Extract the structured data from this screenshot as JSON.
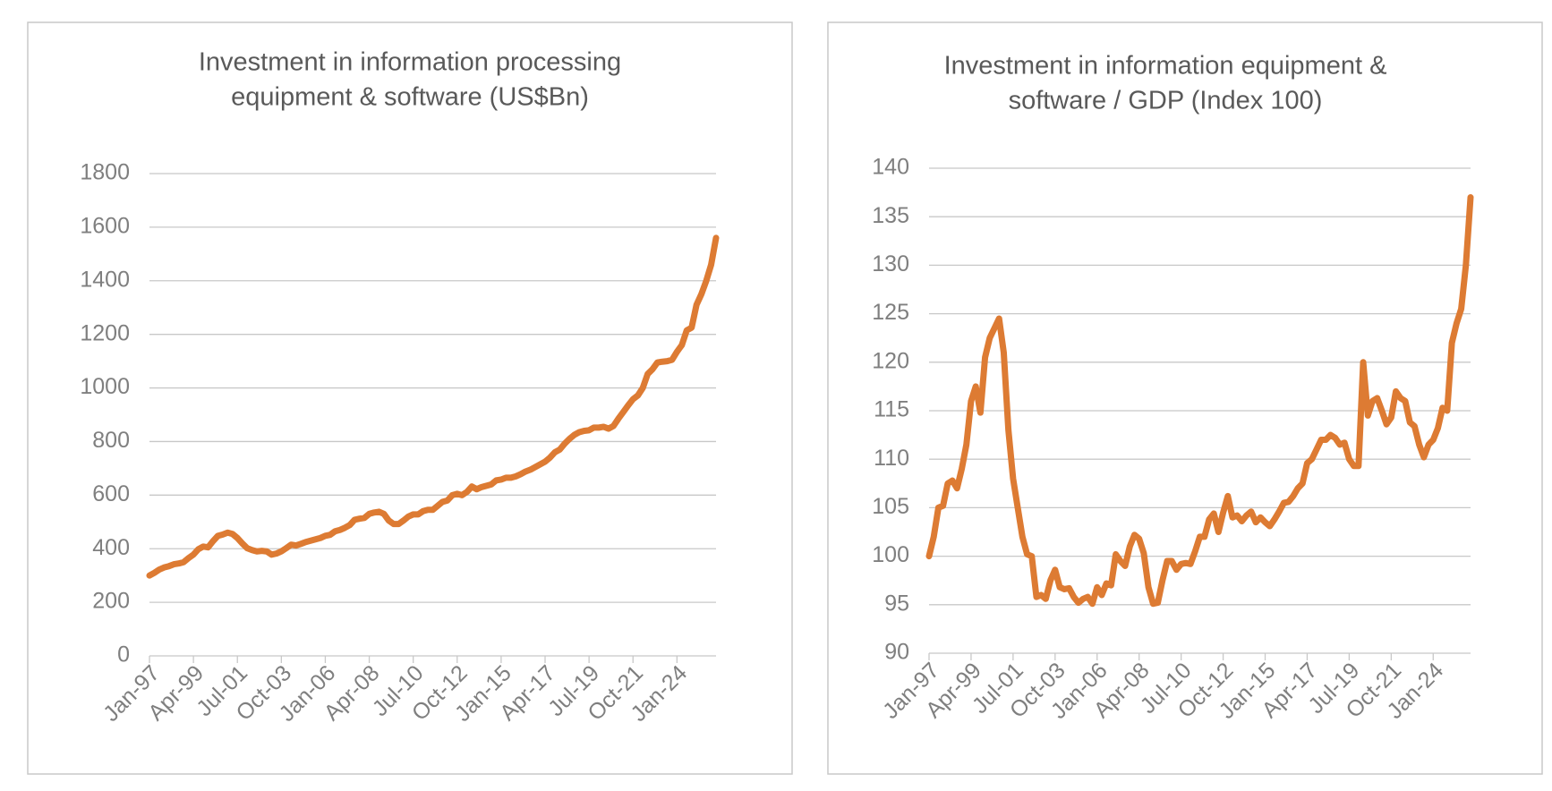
{
  "chart_data": [
    {
      "type": "line",
      "title": [
        "Investment in information processing",
        "equipment & software (US$Bn)"
      ],
      "categories": [
        "Jan-97",
        null,
        null,
        null,
        null,
        null,
        null,
        null,
        null,
        "Apr-99",
        null,
        null,
        null,
        null,
        null,
        null,
        null,
        null,
        "Jul-01",
        null,
        null,
        null,
        null,
        null,
        null,
        null,
        null,
        "Oct-03",
        null,
        null,
        null,
        null,
        null,
        null,
        null,
        null,
        "Jan-06",
        null,
        null,
        null,
        null,
        null,
        null,
        null,
        null,
        "Apr-08",
        null,
        null,
        null,
        null,
        null,
        null,
        null,
        null,
        "Jul-10",
        null,
        null,
        null,
        null,
        null,
        null,
        null,
        null,
        "Oct-12",
        null,
        null,
        null,
        null,
        null,
        null,
        null,
        null,
        "Jan-15",
        null,
        null,
        null,
        null,
        null,
        null,
        null,
        null,
        "Apr-17",
        null,
        null,
        null,
        null,
        null,
        null,
        null,
        null,
        "Jul-19",
        null,
        null,
        null,
        null,
        null,
        null,
        null,
        null,
        "Oct-21",
        null,
        null,
        null,
        null,
        null,
        null,
        null,
        null,
        "Jan-24",
        null,
        null,
        null,
        null,
        null,
        null,
        null,
        null
      ],
      "values": [
        300,
        310,
        322,
        330,
        335,
        342,
        345,
        350,
        365,
        378,
        398,
        408,
        405,
        428,
        448,
        453,
        460,
        455,
        440,
        420,
        402,
        395,
        390,
        392,
        390,
        378,
        382,
        390,
        402,
        415,
        412,
        418,
        425,
        430,
        435,
        440,
        448,
        452,
        465,
        470,
        478,
        488,
        508,
        512,
        515,
        530,
        535,
        538,
        530,
        505,
        492,
        492,
        505,
        520,
        528,
        528,
        540,
        545,
        545,
        560,
        575,
        580,
        600,
        605,
        600,
        612,
        632,
        622,
        630,
        635,
        640,
        655,
        658,
        665,
        665,
        670,
        678,
        688,
        695,
        705,
        715,
        725,
        740,
        760,
        770,
        792,
        810,
        825,
        835,
        840,
        842,
        852,
        852,
        855,
        848,
        858,
        885,
        910,
        935,
        958,
        972,
        1000,
        1052,
        1070,
        1095,
        1098,
        1100,
        1105,
        1135,
        1160,
        1215,
        1225,
        1310,
        1350,
        1400,
        1460,
        1560
      ],
      "color": "#dd7b33",
      "ylim": [
        0,
        1800
      ],
      "yticks": [
        0,
        200,
        400,
        600,
        800,
        1000,
        1200,
        1400,
        1600,
        1800
      ],
      "grid": true
    },
    {
      "type": "line",
      "title": [
        "Investment in information equipment &",
        "software / GDP (Index 100)"
      ],
      "categories": [
        "Jan-97",
        null,
        null,
        null,
        null,
        null,
        null,
        null,
        null,
        "Apr-99",
        null,
        null,
        null,
        null,
        null,
        null,
        null,
        null,
        "Jul-01",
        null,
        null,
        null,
        null,
        null,
        null,
        null,
        null,
        "Oct-03",
        null,
        null,
        null,
        null,
        null,
        null,
        null,
        null,
        "Jan-06",
        null,
        null,
        null,
        null,
        null,
        null,
        null,
        null,
        "Apr-08",
        null,
        null,
        null,
        null,
        null,
        null,
        null,
        null,
        "Jul-10",
        null,
        null,
        null,
        null,
        null,
        null,
        null,
        null,
        "Oct-12",
        null,
        null,
        null,
        null,
        null,
        null,
        null,
        null,
        "Jan-15",
        null,
        null,
        null,
        null,
        null,
        null,
        null,
        null,
        "Apr-17",
        null,
        null,
        null,
        null,
        null,
        null,
        null,
        null,
        "Jul-19",
        null,
        null,
        null,
        null,
        null,
        null,
        null,
        null,
        "Oct-21",
        null,
        null,
        null,
        null,
        null,
        null,
        null,
        null,
        "Jan-24",
        null,
        null,
        null,
        null,
        null,
        null,
        null,
        null
      ],
      "values": [
        100,
        102,
        105,
        105.2,
        107.5,
        107.8,
        107,
        109,
        111.5,
        116,
        117.5,
        114.8,
        120.5,
        122.5,
        123.5,
        124.5,
        121,
        113,
        108,
        105,
        102,
        100.2,
        100,
        95.8,
        96,
        95.6,
        97.5,
        98.6,
        96.8,
        96.6,
        96.7,
        95.8,
        95.2,
        95.6,
        95.8,
        95.1,
        96.8,
        96,
        97.2,
        97,
        100.2,
        99.5,
        99,
        101,
        102.2,
        101.8,
        100.3,
        96.8,
        95.1,
        95.2,
        97.5,
        99.5,
        99.5,
        98.6,
        99.2,
        99.3,
        99.2,
        100.5,
        102,
        102,
        103.8,
        104.4,
        102.5,
        104.5,
        106.2,
        104,
        104.2,
        103.6,
        104.2,
        104.6,
        103.5,
        104,
        103.5,
        103.1,
        103.8,
        104.6,
        105.5,
        105.6,
        106.2,
        107,
        107.5,
        109.6,
        110,
        111,
        112,
        112,
        112.5,
        112.2,
        111.5,
        111.7,
        110,
        109.3,
        109.3,
        120,
        114.5,
        116,
        116.3,
        115,
        113.6,
        114.3,
        117,
        116.3,
        116,
        113.8,
        113.4,
        111.5,
        110.2,
        111.5,
        112,
        113.2,
        115.3,
        115,
        122,
        124,
        125.5,
        130,
        137
      ],
      "color": "#dd7b33",
      "ylim": [
        90,
        140
      ],
      "yticks": [
        90,
        95,
        100,
        105,
        110,
        115,
        120,
        125,
        130,
        135,
        140
      ],
      "grid": true
    }
  ]
}
